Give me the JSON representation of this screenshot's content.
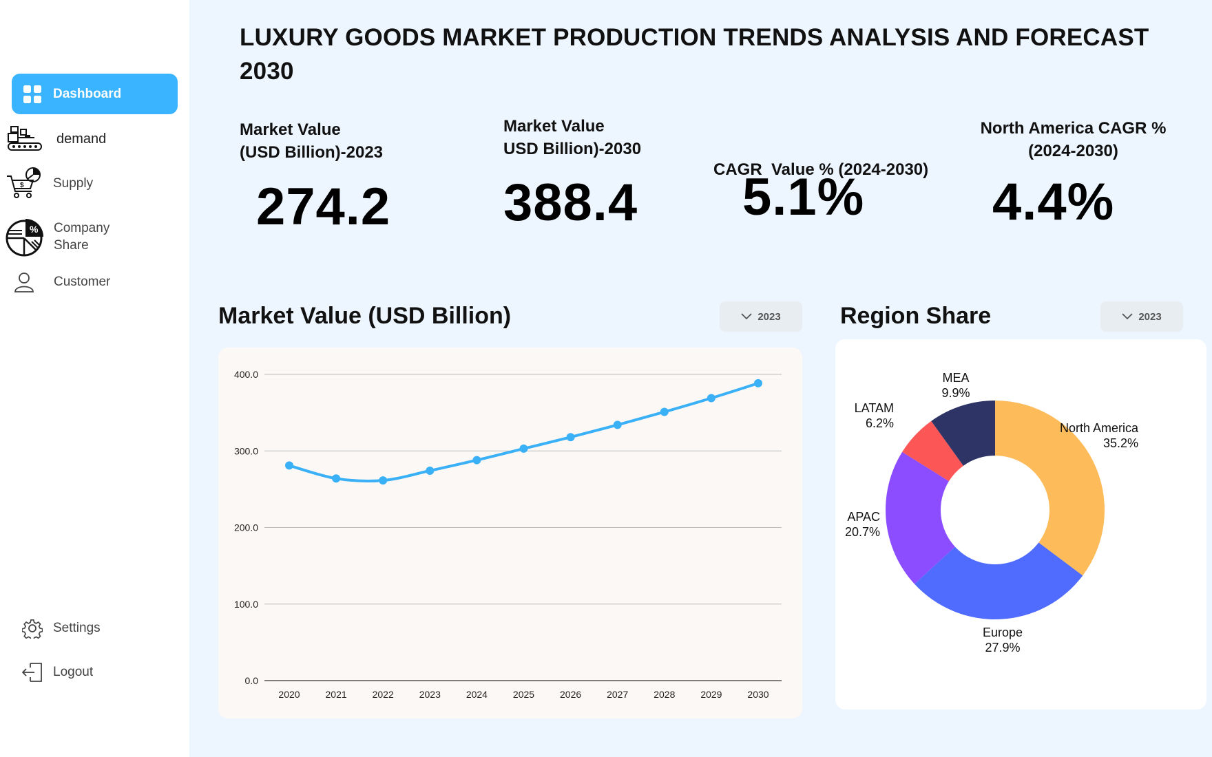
{
  "sidebar": {
    "items": [
      {
        "label": "Dashboard",
        "icon": "dashboard-grid-icon",
        "active": true
      },
      {
        "label": "demand",
        "icon": "conveyor-factory-icon"
      },
      {
        "label": "Supply",
        "icon": "shopping-cart-icon"
      },
      {
        "label": "Company\nShare",
        "icon": "pie-percent-icon"
      },
      {
        "label": "Customer",
        "icon": "user-icon"
      }
    ],
    "bottom": [
      {
        "label": "Settings",
        "icon": "gear-icon"
      },
      {
        "label": "Logout",
        "icon": "logout-icon"
      }
    ]
  },
  "header": {
    "title": "LUXURY GOODS MARKET PRODUCTION TRENDS ANALYSIS AND FORECAST 2030"
  },
  "kpis": [
    {
      "label_line1": "Market Value",
      "label_line2": "(USD Billion)-2023",
      "value": "274.2",
      "bg": "#e0fcea"
    },
    {
      "label_line1": "Market Value",
      "label_line2": "USD Billion)-2030",
      "value": "388.4",
      "bg": "#fbffe0"
    },
    {
      "label_line1": "CAGR  Value % (2024-2030)",
      "label_line2": "",
      "value": "5.1%",
      "bg": "#edf5fe"
    },
    {
      "label_line1": "North America CAGR %",
      "label_line2": "(2024-2030)",
      "value": "4.4%",
      "bg": "#fdeeee"
    }
  ],
  "line_panel": {
    "title": "Market Value (USD Billion)",
    "dropdown": "2023"
  },
  "pie_panel": {
    "title": "Region Share",
    "dropdown": "2023"
  },
  "chart_data": [
    {
      "type": "line",
      "title": "Market Value (USD Billion)",
      "x": [
        "2020",
        "2021",
        "2022",
        "2023",
        "2024",
        "2025",
        "2026",
        "2027",
        "2028",
        "2029",
        "2030"
      ],
      "series": [
        {
          "values": [
            281.0,
            264.0,
            261.5,
            274.2,
            288.0,
            303.0,
            318.0,
            334.0,
            351.0,
            369.0,
            388.4
          ],
          "color": "#3ab0f6"
        }
      ],
      "ylim": [
        0,
        400
      ],
      "yticks": [
        "0.0",
        "100.0",
        "200.0",
        "300.0",
        "400.0"
      ],
      "grid": true
    },
    {
      "type": "pie",
      "title": "Region Share",
      "donut": true,
      "slices": [
        {
          "name": "North America",
          "value": 35.2,
          "label": "35.2%",
          "color": "#fdbb59"
        },
        {
          "name": "Europe",
          "value": 27.9,
          "label": "27.9%",
          "color": "#4f6cff"
        },
        {
          "name": "APAC",
          "value": 20.7,
          "label": "20.7%",
          "color": "#8b4dff"
        },
        {
          "name": "LATAM",
          "value": 6.2,
          "label": "6.2%",
          "color": "#fd5656"
        },
        {
          "name": "MEA",
          "value": 9.9,
          "label": "9.9%",
          "color": "#2e3566"
        }
      ]
    }
  ]
}
